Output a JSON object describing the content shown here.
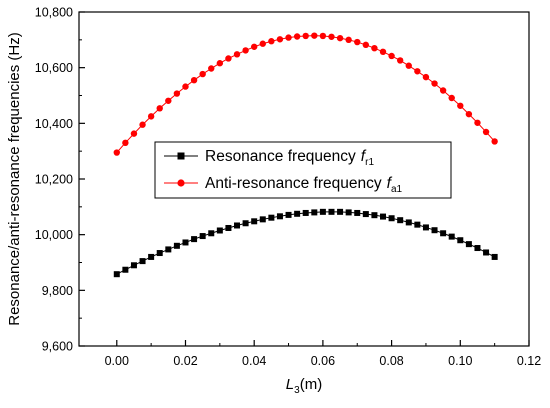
{
  "chart_data": {
    "type": "line",
    "ylabel": "Resonance/anti-resonance frequencies (Hz)",
    "xlabel": {
      "prefix": "L",
      "sub": "3",
      "suffix": "(m)"
    },
    "xlim": [
      -0.011,
      0.12
    ],
    "ylim": [
      9600,
      10800
    ],
    "xticks": [
      0.0,
      0.02,
      0.04,
      0.06,
      0.08,
      0.1,
      0.12
    ],
    "xtick_labels": [
      "0.00",
      "0.02",
      "0.04",
      "0.06",
      "0.08",
      "0.10",
      "0.12"
    ],
    "yticks": [
      9600,
      9800,
      10000,
      10200,
      10400,
      10600,
      10800
    ],
    "ytick_labels": [
      "9,600",
      "9,800",
      "10,000",
      "10,200",
      "10,400",
      "10,600",
      "10,800"
    ],
    "grid": false,
    "legend": {
      "placement": "center-right"
    },
    "series": [
      {
        "name": "Resonance frequency",
        "name_italic": "f",
        "name_sub": "r1",
        "color": "#000000",
        "marker": "square",
        "x": [
          0,
          0.0025,
          0.005,
          0.0075,
          0.01,
          0.0125,
          0.015,
          0.0175,
          0.02,
          0.0225,
          0.025,
          0.0275,
          0.03,
          0.0325,
          0.035,
          0.0375,
          0.04,
          0.0425,
          0.045,
          0.0475,
          0.05,
          0.0525,
          0.055,
          0.0575,
          0.06,
          0.0625,
          0.065,
          0.0675,
          0.07,
          0.0725,
          0.075,
          0.0775,
          0.08,
          0.0825,
          0.085,
          0.0875,
          0.09,
          0.0925,
          0.095,
          0.0975,
          0.1,
          0.1025,
          0.105,
          0.1075,
          0.11
        ],
        "values": [
          9858,
          9874,
          9890,
          9905,
          9920,
          9934,
          9947,
          9960,
          9972,
          9984,
          9995,
          10005,
          10015,
          10024,
          10033,
          10041,
          10048,
          10055,
          10061,
          10066,
          10071,
          10075,
          10078,
          10080,
          10082,
          10082,
          10082,
          10080,
          10078,
          10074,
          10070,
          10065,
          10059,
          10052,
          10044,
          10036,
          10026,
          10016,
          10005,
          9993,
          9980,
          9966,
          9952,
          9936,
          9920
        ]
      },
      {
        "name": "Anti-resonance frequency",
        "name_italic": "f",
        "name_sub": "a1",
        "color": "#ff0000",
        "marker": "circle",
        "x": [
          0,
          0.0025,
          0.005,
          0.0075,
          0.01,
          0.0125,
          0.015,
          0.0175,
          0.02,
          0.0225,
          0.025,
          0.0275,
          0.03,
          0.0325,
          0.035,
          0.0375,
          0.04,
          0.0425,
          0.045,
          0.0475,
          0.05,
          0.0525,
          0.055,
          0.0575,
          0.06,
          0.0625,
          0.065,
          0.0675,
          0.07,
          0.0725,
          0.075,
          0.0775,
          0.08,
          0.0825,
          0.085,
          0.0875,
          0.09,
          0.0925,
          0.095,
          0.0975,
          0.1,
          0.1025,
          0.105,
          0.1075,
          0.11
        ],
        "values": [
          10295,
          10330,
          10363,
          10395,
          10425,
          10454,
          10481,
          10507,
          10532,
          10555,
          10577,
          10597,
          10616,
          10633,
          10648,
          10662,
          10675,
          10686,
          10695,
          10702,
          10708,
          10712,
          10714,
          10715,
          10714,
          10711,
          10706,
          10700,
          10692,
          10682,
          10670,
          10657,
          10642,
          10626,
          10607,
          10587,
          10566,
          10543,
          10518,
          10491,
          10463,
          10433,
          10402,
          10369,
          10335
        ]
      }
    ]
  }
}
